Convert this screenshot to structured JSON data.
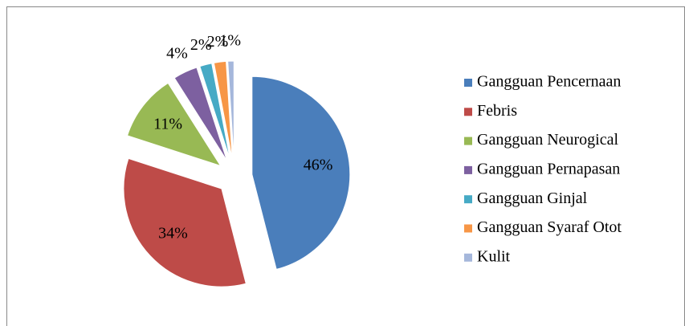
{
  "chart_data": {
    "type": "pie",
    "categories": [
      "Gangguan Pencernaan",
      "Febris",
      "Gangguan Neurogical",
      "Gangguan Pernapasan",
      "Gangguan Ginjal",
      "Gangguan Syaraf Otot",
      "Kulit"
    ],
    "values": [
      46,
      34,
      11,
      4,
      2,
      2,
      1
    ],
    "value_labels": [
      "46%",
      "34%",
      "11%",
      "4%",
      "2%",
      "2%",
      "1%"
    ],
    "colors": [
      "#4a7ebb",
      "#be4b48",
      "#98b954",
      "#7d60a0",
      "#46aac5",
      "#f79646",
      "#a5b7db"
    ],
    "exploded": true,
    "legend": "right"
  }
}
